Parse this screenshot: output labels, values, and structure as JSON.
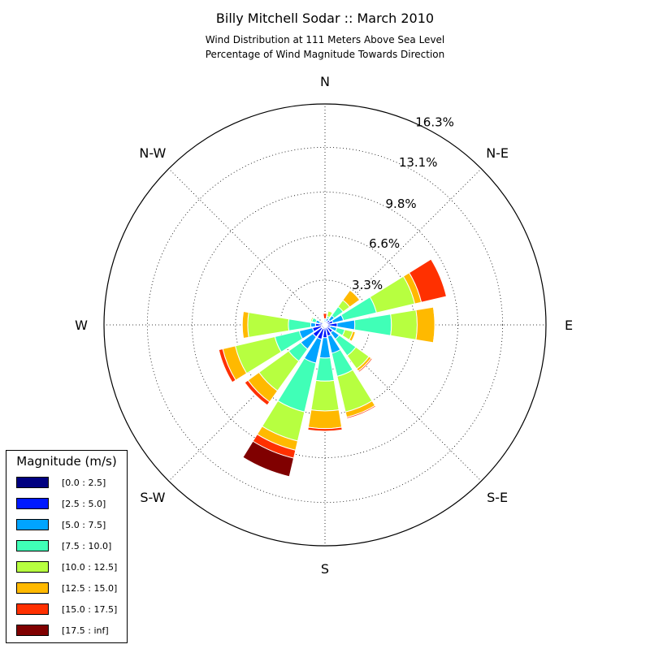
{
  "chart_data": {
    "type": "windrose",
    "title": "Billy Mitchell Sodar :: March 2010",
    "subtitle_lines": [
      "Wind Distribution at 111 Meters Above Sea Level",
      "Percentage of Wind Magnitude Towards Direction"
    ],
    "direction_labels": [
      "E",
      "N-E",
      "N",
      "N-W",
      "W",
      "S-W",
      "S",
      "S-E"
    ],
    "radial_ticks": [
      "3.3%",
      "6.6%",
      "9.8%",
      "13.1%",
      "16.3%"
    ],
    "radial_tick_values": [
      3.3,
      6.6,
      9.8,
      13.1,
      16.3
    ],
    "r_max": 16.3,
    "legend_title": "Magnitude (m/s)",
    "bins": [
      {
        "name": "[0.0 : 2.5]",
        "color": "#000080"
      },
      {
        "name": "[2.5 : 5.0]",
        "color": "#0019ff"
      },
      {
        "name": "[5.0 : 7.5]",
        "color": "#00a4ff"
      },
      {
        "name": "[7.5 : 10.0]",
        "color": "#40ffb7"
      },
      {
        "name": "[10.0 : 12.5]",
        "color": "#b7ff40"
      },
      {
        "name": "[12.5 : 15.0]",
        "color": "#ffb900"
      },
      {
        "name": "[15.0 : 17.5]",
        "color": "#ff3000"
      },
      {
        "name": "[17.5 : inf]",
        "color": "#800000"
      }
    ],
    "direction_angles_deg": [
      0,
      22.5,
      45,
      67.5,
      90,
      112.5,
      135,
      157.5,
      180,
      202.5,
      225,
      247.5,
      270,
      292.5,
      315,
      337.5
    ],
    "directions": [
      {
        "angle": 0,
        "values": [
          0.15,
          0.75,
          1.3,
          2.7,
          1.9,
          1.3,
          0.05,
          0
        ]
      },
      {
        "angle": 22.5,
        "values": [
          0.15,
          0.45,
          0.8,
          2.5,
          2.9,
          0.5,
          1.9,
          0
        ]
      },
      {
        "angle": 45,
        "values": [
          0.15,
          0.3,
          0.4,
          0.8,
          0.6,
          0.9,
          0,
          0
        ]
      },
      {
        "angle": 67.5,
        "values": [
          0.1,
          0.2,
          0.2,
          0.15,
          0.4,
          0,
          0,
          0
        ]
      },
      {
        "angle": 90,
        "values": [
          0.05,
          0.15,
          0.15,
          0.1,
          0,
          0,
          0.4,
          0
        ]
      },
      {
        "angle": 112.5,
        "values": [
          0.05,
          0.05,
          0.05,
          0.05,
          0,
          0,
          0,
          0
        ]
      },
      {
        "angle": 135,
        "values": [
          0.05,
          0.1,
          0.1,
          0,
          0.1,
          0,
          0,
          0
        ]
      },
      {
        "angle": 157.5,
        "values": [
          0.1,
          0.3,
          0.3,
          0.3,
          0.1,
          0,
          0,
          0
        ]
      },
      {
        "angle": 180,
        "values": [
          0.2,
          0.5,
          0.35,
          1.65,
          3.0,
          0.4,
          0,
          0
        ]
      },
      {
        "angle": 202.5,
        "values": [
          0.3,
          0.65,
          1.0,
          1.85,
          3.0,
          0.95,
          0.3,
          0
        ]
      },
      {
        "angle": 225,
        "values": [
          0.3,
          0.8,
          1.1,
          1.1,
          2.7,
          1.0,
          0.3,
          0
        ]
      },
      {
        "angle": 247.5,
        "values": [
          0.3,
          0.8,
          1.8,
          3.7,
          2.2,
          0.7,
          0.6,
          1.4
        ]
      },
      {
        "angle": 270,
        "values": [
          0.2,
          0.75,
          1.5,
          1.7,
          2.2,
          1.3,
          0.2,
          0
        ]
      },
      {
        "angle": 292.5,
        "values": [
          0.2,
          0.65,
          1.3,
          1.75,
          2.7,
          0.4,
          0.1,
          0
        ]
      },
      {
        "angle": 315,
        "values": [
          0.2,
          0.5,
          0.6,
          1.5,
          1.2,
          0.2,
          0.1,
          0
        ]
      },
      {
        "angle": 337.5,
        "values": [
          0.1,
          0.3,
          0.5,
          0.6,
          0.6,
          0.2,
          0,
          0
        ]
      }
    ]
  }
}
